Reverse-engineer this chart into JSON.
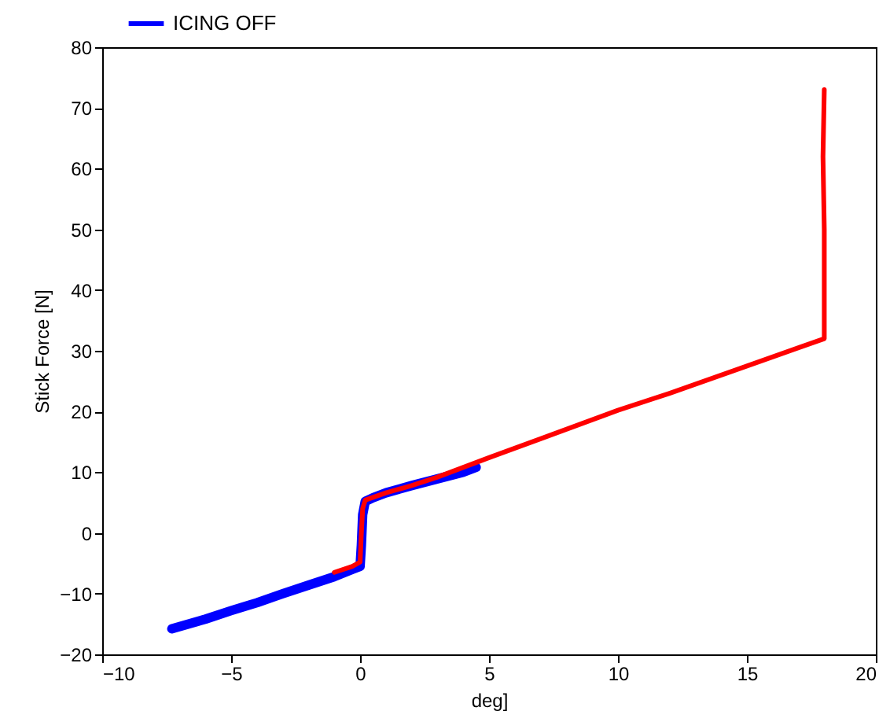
{
  "chart_data": {
    "type": "line",
    "xlabel": "deg]",
    "ylabel": "Stick Force [N]",
    "xlim": [
      -10,
      20
    ],
    "ylim": [
      -20,
      80
    ],
    "xticks": [
      -10,
      -5,
      0,
      5,
      10,
      15,
      20
    ],
    "yticks": [
      -20,
      -10,
      0,
      10,
      20,
      30,
      40,
      50,
      60,
      70,
      80
    ],
    "grid": false,
    "legend": "top left",
    "marker": "none",
    "line_style": "solid",
    "series": [
      {
        "name": "ICING OFF",
        "color": "#0000ff",
        "x": [
          -7.3,
          -6,
          -5,
          -4,
          -3,
          -2,
          -1,
          -0.3,
          0,
          0.05,
          0.1,
          0.2,
          0.5,
          1,
          2,
          3,
          4,
          4.5
        ],
        "values": [
          -15.8,
          -14.2,
          -12.8,
          -11.5,
          -10,
          -8.6,
          -7.2,
          -6,
          -5.5,
          -2,
          3,
          5.2,
          5.8,
          6.6,
          7.8,
          8.9,
          10,
          10.8
        ]
      },
      {
        "color": "#ff0000",
        "x": [
          -1,
          -0.3,
          0,
          0.05,
          0.1,
          0.2,
          1,
          2,
          3,
          5,
          7,
          10,
          12,
          15,
          17,
          18,
          18,
          17.95,
          18
        ],
        "values": [
          -6.5,
          -5.5,
          -4.8,
          0,
          4,
          5.4,
          6.6,
          7.8,
          9.2,
          12.4,
          15.5,
          20.2,
          23,
          27.5,
          30.5,
          32,
          50,
          62,
          73
        ]
      }
    ]
  }
}
